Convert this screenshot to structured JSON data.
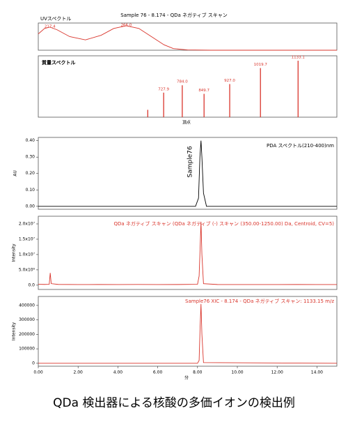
{
  "header": {
    "title": "Sample 76 - 8.174 - QDa ネガティブ スキャン"
  },
  "chart_data": [
    {
      "type": "line",
      "title": "UVスペクトル",
      "color": "#d9342b",
      "x": [
        210,
        214,
        217.4,
        222,
        230,
        240,
        250,
        258,
        266,
        274,
        282,
        290,
        296,
        305,
        320,
        400
      ],
      "values": [
        0.6,
        0.8,
        0.85,
        0.75,
        0.5,
        0.38,
        0.55,
        0.8,
        0.9,
        0.8,
        0.5,
        0.2,
        0.06,
        0.01,
        0,
        0
      ],
      "xlim": [
        210,
        400
      ],
      "ylim": [
        0,
        1
      ],
      "annotations": [
        {
          "value": 217.4,
          "label": "217.4"
        },
        {
          "value": 266.0,
          "label": "266.0"
        }
      ]
    },
    {
      "type": "bar",
      "title": "質量スペクトル",
      "xlabel": "頂点",
      "color": "#d9342b",
      "x": [
        680,
        727.9,
        784.0,
        849.7,
        927.0,
        1019.7,
        1133.1
      ],
      "values": [
        12,
        40,
        52,
        38,
        54,
        80,
        92
      ],
      "peak_labels": [
        null,
        "727.9",
        "784.0",
        "849.7",
        "927.0",
        "1019.7",
        "1133.1"
      ],
      "xlim": [
        350,
        1250
      ],
      "ylim": [
        0,
        100
      ]
    },
    {
      "type": "line",
      "title": "PDA スペクトル(210-400)nm",
      "ylabel": "AU",
      "color": "#000000",
      "annotation": "Sample76",
      "x": [
        0,
        7.9,
        8.05,
        8.12,
        8.174,
        8.22,
        8.3,
        8.45,
        15
      ],
      "values": [
        0,
        0,
        0.05,
        0.3,
        0.4,
        0.3,
        0.08,
        0,
        0
      ],
      "xlim": [
        0,
        15
      ],
      "ylim": [
        -0.018,
        0.42
      ],
      "yticks": [
        {
          "value": 0,
          "label": "0.00"
        },
        {
          "value": 0.1,
          "label": "0.10"
        },
        {
          "value": 0.2,
          "label": "0.20"
        },
        {
          "value": 0.3,
          "label": "0.30"
        },
        {
          "value": 0.4,
          "label": "0.40"
        }
      ]
    },
    {
      "type": "line",
      "title": "QDa ネガティブ スキャン (QDa ネガティブ (-) スキャン (350.00-1250.00) Da, Centroid, CV=5)",
      "ylabel": "Intensity",
      "color": "#d9342b",
      "x": [
        0,
        0.3,
        0.55,
        0.6,
        0.65,
        1.0,
        2.0,
        3.0,
        4.0,
        5.0,
        6.0,
        7.0,
        8.0,
        8.08,
        8.13,
        8.174,
        8.22,
        8.3,
        9.0,
        10.0,
        11.0,
        12.0,
        13.0,
        14.0,
        15.0
      ],
      "values": [
        300000,
        250000,
        300000,
        4000000,
        500000,
        250000,
        200000,
        220000,
        200000,
        230000,
        210000,
        220000,
        300000,
        3000000,
        12000000,
        20700000,
        10000000,
        500000,
        220000,
        200000,
        210000,
        200000,
        220000,
        200000,
        210000
      ],
      "xlim": [
        0,
        15
      ],
      "ylim": [
        -1400000,
        22500000
      ],
      "yticks": [
        {
          "value": 0,
          "label": "0.0"
        },
        {
          "value": 5000000,
          "label": "5.0x10⁶"
        },
        {
          "value": 10000000,
          "label": "1.0x10⁷"
        },
        {
          "value": 15000000,
          "label": "1.5x10⁷"
        },
        {
          "value": 20000000,
          "label": "2.0x10⁷"
        }
      ]
    },
    {
      "type": "line",
      "title": "Sample76 XIC - 8.174 - QDa ネガティブ スキャン: 1133.15 m/z",
      "ylabel": "Intensity",
      "xlabel": "分",
      "color": "#d9342b",
      "x": [
        0,
        8.0,
        8.08,
        8.13,
        8.174,
        8.22,
        8.3,
        15
      ],
      "values": [
        0,
        0,
        20000,
        250000,
        410000,
        200000,
        5000,
        0
      ],
      "xlim": [
        0,
        15
      ],
      "ylim": [
        -20000,
        462000
      ],
      "yticks": [
        0,
        100000,
        200000,
        300000,
        400000
      ],
      "xticks": [
        {
          "value": 0,
          "label": "0.00"
        },
        {
          "value": 2,
          "label": "2.00"
        },
        {
          "value": 4,
          "label": "4.00"
        },
        {
          "value": 6,
          "label": "6.00"
        },
        {
          "value": 8,
          "label": "8.00"
        },
        {
          "value": 10,
          "label": "10.00"
        },
        {
          "value": 12,
          "label": "12.00"
        },
        {
          "value": 14,
          "label": "14.00"
        }
      ]
    }
  ],
  "caption": "QDa 検出器による核酸の多価イオンの検出例"
}
